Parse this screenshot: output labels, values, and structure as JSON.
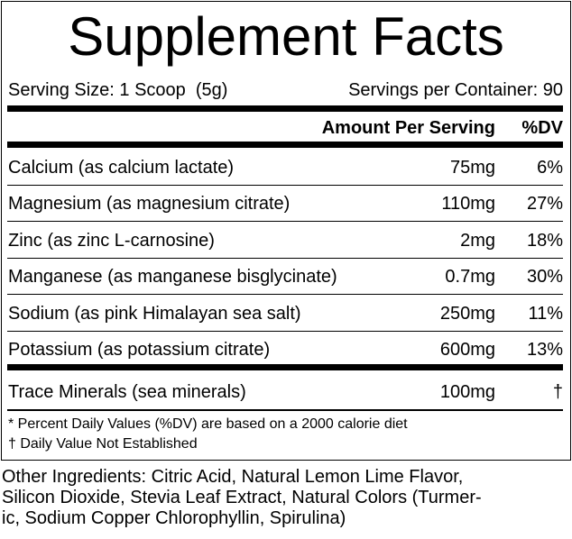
{
  "title": "Supplement Facts",
  "serving": {
    "size": "Serving Size: 1 Scoop  (5g)",
    "per_container": "Servings per Container: 90"
  },
  "header": {
    "amount": "Amount Per Serving",
    "dv": "%DV"
  },
  "rows": [
    [
      "Calcium (as calcium lactate)",
      "75mg",
      "6%"
    ],
    [
      "Magnesium (as magnesium citrate)",
      "110mg",
      "27%"
    ],
    [
      "Zinc (as zinc L-carnosine)",
      "2mg",
      "18%"
    ],
    [
      "Manganese (as manganese bisglycinate)",
      "0.7mg",
      "30%"
    ],
    [
      "Sodium (as pink Himalayan sea salt)",
      "250mg",
      "11%"
    ],
    [
      "Potassium (as potassium citrate)",
      "600mg",
      "13%"
    ]
  ],
  "extra_rows": [
    [
      "Trace Minerals (sea minerals)",
      "100mg",
      "†"
    ]
  ],
  "footnotes": [
    "* Percent Daily Values (%DV) are based on a 2000 calorie diet",
    "† Daily Value Not Established"
  ],
  "other_ingredients": [
    "Other Ingredients: Citric Acid, Natural Lemon Lime Flavor,",
    "Silicon Dioxide, Stevia Leaf Extract, Natural Colors (Turmer-",
    "ic, Sodium Copper Chlorophyllin, Spirulina)"
  ]
}
